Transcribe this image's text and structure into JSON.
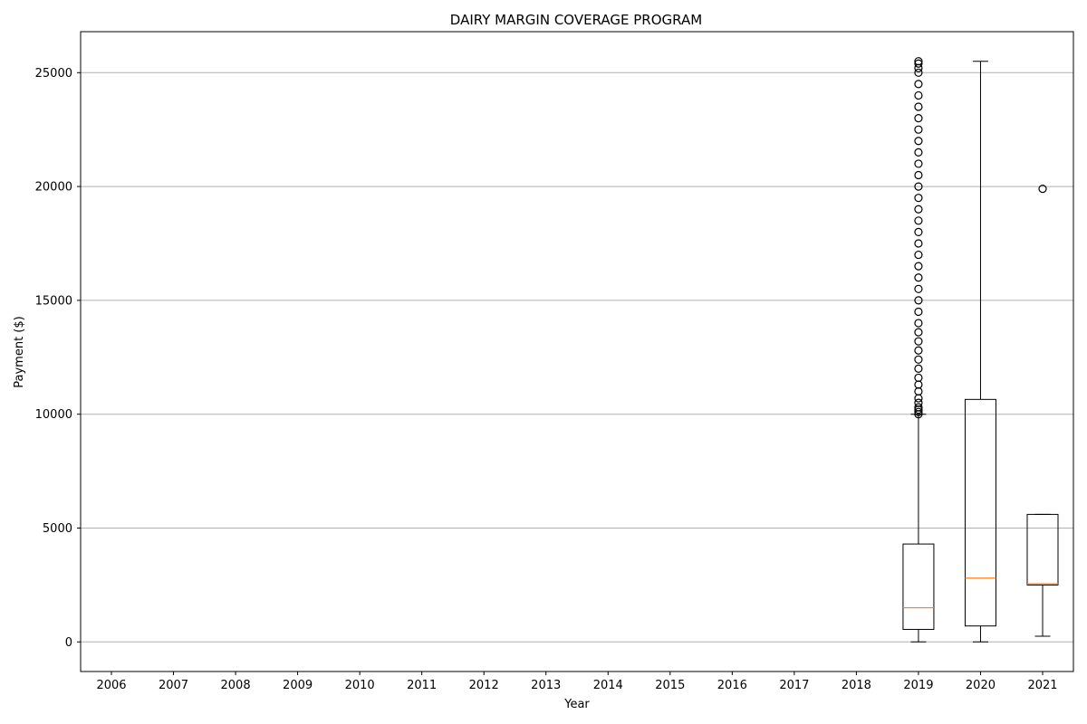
{
  "chart_data": {
    "type": "box",
    "title": "DAIRY MARGIN COVERAGE PROGRAM",
    "xlabel": "Year",
    "ylabel": "Payment ($)",
    "categories": [
      "2006",
      "2007",
      "2008",
      "2009",
      "2010",
      "2011",
      "2012",
      "2013",
      "2014",
      "2015",
      "2016",
      "2017",
      "2018",
      "2019",
      "2020",
      "2021"
    ],
    "yticks": [
      0,
      5000,
      10000,
      15000,
      20000,
      25000
    ],
    "ylim": [
      -1300,
      26800
    ],
    "grid": "y",
    "boxes": [
      {
        "category": "2019",
        "whisker_low": 0,
        "q1": 550,
        "median": 1500,
        "q3": 4300,
        "whisker_high": 10000,
        "outliers": [
          10000,
          10100,
          10200,
          10300,
          10500,
          10700,
          11000,
          11300,
          11600,
          12000,
          12400,
          12800,
          13200,
          13600,
          14000,
          14500,
          15000,
          15500,
          16000,
          16500,
          17000,
          17500,
          18000,
          18500,
          19000,
          19500,
          20000,
          20500,
          21000,
          21500,
          22000,
          22500,
          23000,
          23500,
          24000,
          24500,
          25000,
          25200,
          25400,
          25500
        ]
      },
      {
        "category": "2020",
        "whisker_low": 0,
        "q1": 700,
        "median": 2800,
        "q3": 10650,
        "whisker_high": 25500,
        "outliers": []
      },
      {
        "category": "2021",
        "whisker_low": 250,
        "q1": 2500,
        "median": 2550,
        "q3": 5600,
        "whisker_high": 5600,
        "outliers": [
          19900
        ]
      }
    ],
    "colors": {
      "box": "#000000",
      "median": "#ff7f0e",
      "grid": "#b0b0b0"
    }
  }
}
